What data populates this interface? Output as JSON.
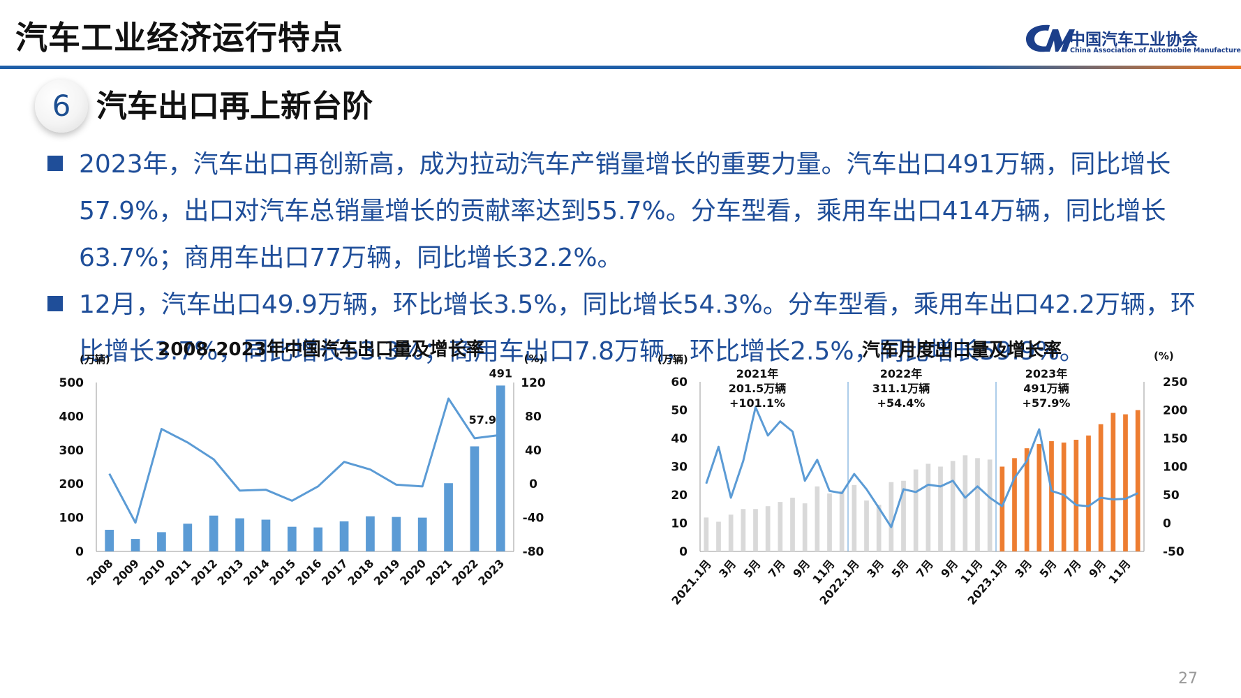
{
  "header": {
    "title": "汽车工业经济运行特点",
    "logo_cn": "中国汽车工业协会",
    "logo_en": "China Association of Automobile Manufacturers",
    "bar_colors": [
      "#1f5fa8",
      "#e87722"
    ]
  },
  "section": {
    "number": "6",
    "title": "汽车出口再上新台阶"
  },
  "bullets": [
    "2023年，汽车出口再创新高，成为拉动汽车产销量增长的重要力量。汽车出口491万辆，同比增长57.9%，出口对汽车总销量增长的贡献率达到55.7%。分车型看，乘用车出口414万辆，同比增长63.7%；商用车出口77万辆，同比增长32.2%。",
    "12月，汽车出口49.9万辆，环比增长3.5%，同比增长54.3%。分车型看，乘用车出口42.2万辆，环比增长3.7%，同比增长53.3%；商用车出口7.8万辆，环比增长2.5%，同比增长59.9%。"
  ],
  "page_number": "27",
  "chart_data": [
    {
      "type": "bar",
      "title": "2008-2023年中国汽车出口量及增长率",
      "y_unit_left": "(万辆)",
      "y_unit_right": "(%)",
      "categories": [
        "2008",
        "2009",
        "2010",
        "2011",
        "2012",
        "2013",
        "2014",
        "2015",
        "2016",
        "2017",
        "2018",
        "2019",
        "2020",
        "2021",
        "2022",
        "2023"
      ],
      "ylim_left": [
        0,
        500
      ],
      "yticks_left": [
        "0",
        "100",
        "200",
        "300",
        "400",
        "500"
      ],
      "ylim_right": [
        -80,
        120
      ],
      "yticks_right": [
        "-80",
        "-40",
        "0",
        "40",
        "80",
        "120"
      ],
      "series": [
        {
          "type": "bar",
          "axis": "left",
          "color": "#5b9bd5",
          "values": [
            64,
            37,
            57,
            82,
            106,
            98,
            94,
            73,
            71,
            89,
            104,
            102,
            100,
            202,
            311,
            491
          ]
        },
        {
          "type": "line",
          "axis": "right",
          "color": "#5b9bd5",
          "values": [
            12,
            -46,
            65,
            49,
            29,
            -8,
            -7,
            -20,
            -3,
            26,
            17,
            -1,
            -3,
            101,
            54,
            57.9
          ]
        }
      ],
      "annotations": [
        {
          "category": "2023",
          "text": "491",
          "series": 0
        },
        {
          "category": "2023",
          "text": "57.9",
          "series": 1
        }
      ]
    },
    {
      "type": "bar",
      "title": "汽车月度出口量及增长率",
      "y_unit_left": "(万辆)",
      "y_unit_right": "(%)",
      "x_tick_labels": [
        "2021.1月",
        "3月",
        "5月",
        "7月",
        "9月",
        "11月",
        "2022.1月",
        "3月",
        "5月",
        "7月",
        "9月",
        "11月",
        "2023.1月",
        "3月",
        "5月",
        "7月",
        "9月",
        "11月"
      ],
      "ylim_left": [
        0,
        60
      ],
      "yticks_left": [
        "0",
        "10",
        "20",
        "30",
        "40",
        "50",
        "60"
      ],
      "ylim_right": [
        -50,
        250
      ],
      "yticks_right": [
        "-50",
        "0",
        "50",
        "100",
        "150",
        "200",
        "250"
      ],
      "series": [
        {
          "type": "bar",
          "axis": "left",
          "colors": [
            "#d9d9d9",
            "#ed7d31"
          ],
          "values": [
            12,
            10.5,
            13,
            15,
            15,
            16,
            17.5,
            19,
            17,
            23,
            20.5,
            21.5,
            23.5,
            18,
            16.5,
            24.5,
            25,
            29,
            31,
            30,
            32,
            34,
            33,
            32.5,
            30,
            33,
            36.5,
            38,
            39,
            38.5,
            39.5,
            41,
            45,
            49,
            48.5,
            50
          ]
        },
        {
          "type": "line",
          "axis": "right",
          "color": "#5b9bd5",
          "values": [
            70,
            135,
            45,
            110,
            205,
            155,
            180,
            162,
            75,
            112,
            57,
            53,
            87,
            60,
            27,
            -7,
            60,
            55,
            68,
            65,
            75,
            45,
            65,
            45,
            30,
            80,
            110,
            166,
            57,
            50,
            32,
            30,
            45,
            42,
            43,
            53
          ]
        }
      ],
      "group_labels": [
        {
          "year": "2021年",
          "total": "201.5万辆",
          "growth": "+101.1%"
        },
        {
          "year": "2022年",
          "total": "311.1万辆",
          "growth": "+54.4%"
        },
        {
          "year": "2023年",
          "total": "491万辆",
          "growth": "+57.9%"
        }
      ]
    }
  ]
}
